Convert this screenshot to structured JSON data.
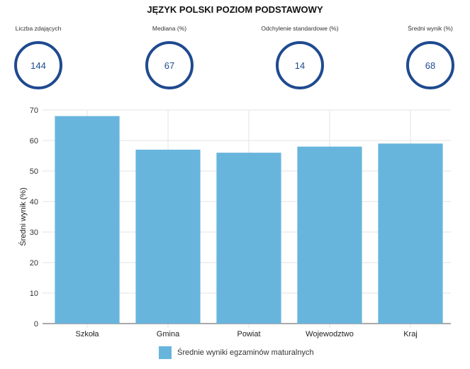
{
  "title": "JĘZYK POLSKI POZIOM PODSTAWOWY",
  "stats": [
    {
      "label": "Liczba zdających",
      "value": "144"
    },
    {
      "label": "Mediana (%)",
      "value": "67"
    },
    {
      "label": "Odchylenie standardowe (%)",
      "value": "14"
    },
    {
      "label": "Średni wynik (%)",
      "value": "68"
    }
  ],
  "chart_data": {
    "type": "bar",
    "categories": [
      "Szkoła",
      "Gmina",
      "Powiat",
      "Wojewodztwo",
      "Kraj"
    ],
    "series": [
      {
        "name": "Średnie wyniki egzaminów maturalnych",
        "values": [
          68,
          57,
          56,
          58,
          59
        ],
        "color": "#67b5dd"
      }
    ],
    "ylabel": "Średni wynik (%)",
    "ylim": [
      0,
      70
    ],
    "yticks": [
      0,
      10,
      20,
      30,
      40,
      50,
      60,
      70
    ],
    "grid": true,
    "legend_position": "bottom"
  }
}
